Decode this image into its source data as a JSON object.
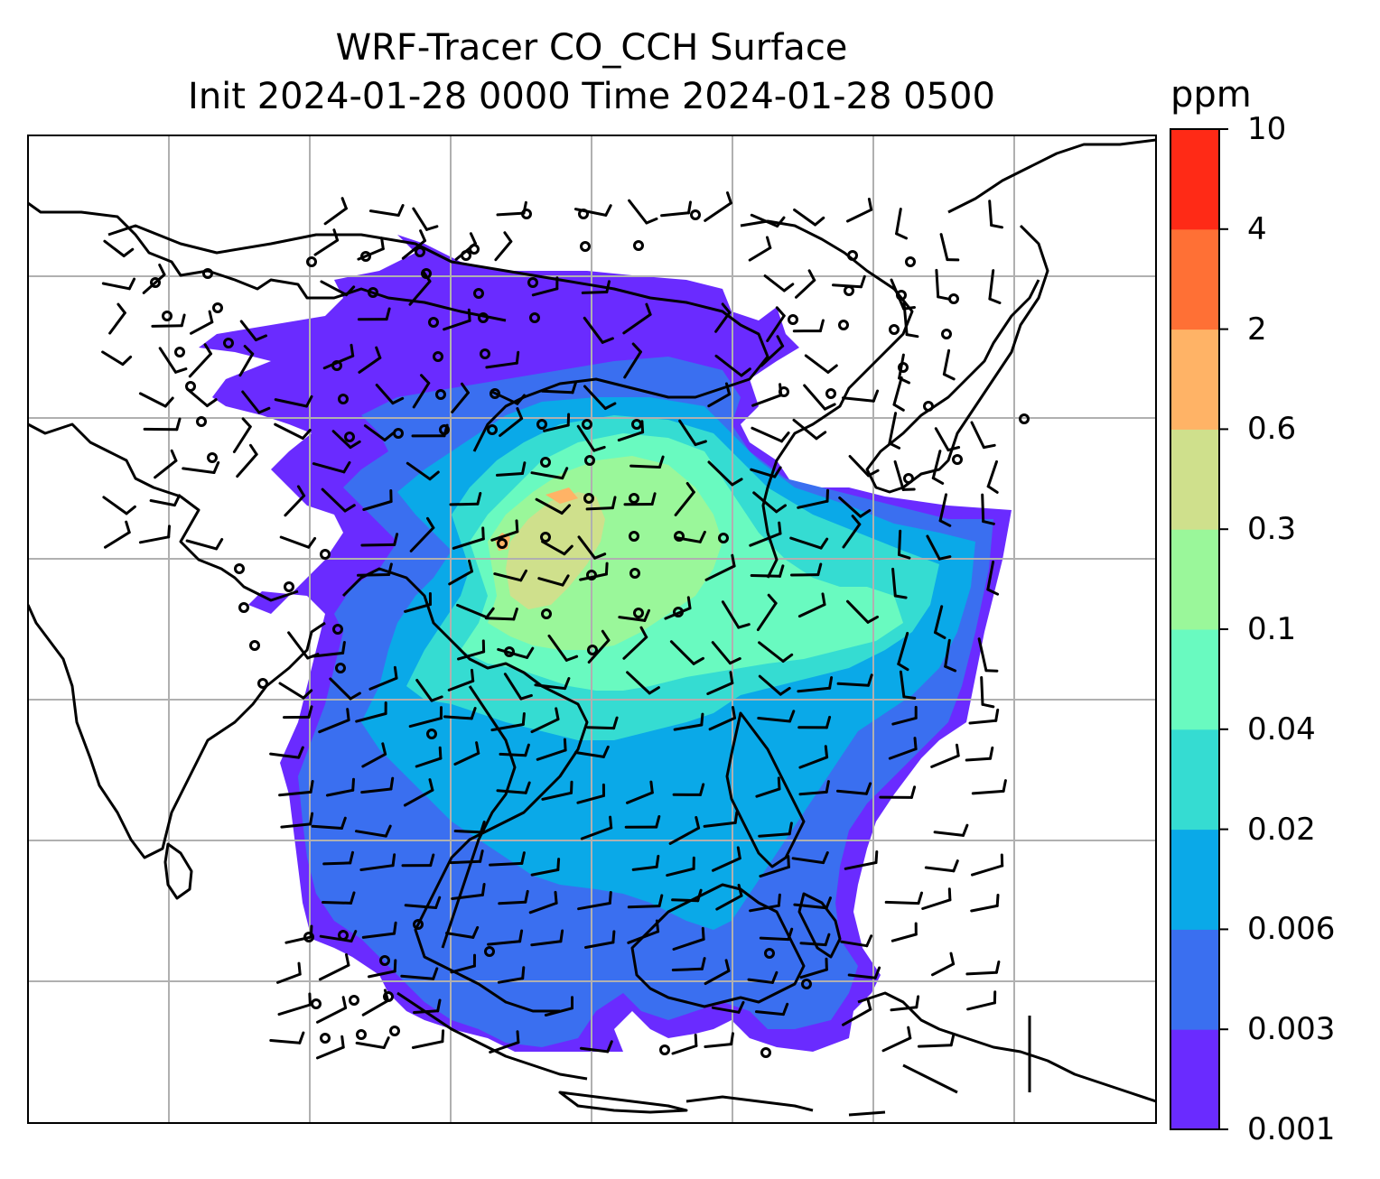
{
  "title": {
    "line1": "WRF-Tracer CO_CCH Surface",
    "line2": "Init 2024-01-28 0000 Time 2024-01-28 0500"
  },
  "colorbar": {
    "unit": "ppm",
    "ticks": [
      "0.001",
      "0.003",
      "0.006",
      "0.02",
      "0.04",
      "0.1",
      "0.3",
      "0.6",
      "2",
      "4",
      "10"
    ],
    "colors": [
      "#6a2bff",
      "#3a6ff0",
      "#0aa9e8",
      "#35dcd2",
      "#69fac0",
      "#9af79a",
      "#cfe08c",
      "#ffb366",
      "#ff7035",
      "#ff2a16"
    ]
  },
  "map": {
    "field_colors": {
      "lowest": "#6a2bff",
      "low": "#3a6ff0",
      "mid": "#0aa9e8",
      "mid_high": "#35dcd2",
      "high": "#69fac0",
      "higher": "#9af79a",
      "peak": "#cfe08c",
      "max": "#ffb366"
    },
    "coastline_color": "#000000",
    "gridline_color": "#b0b0b0",
    "gridlines": true
  }
}
